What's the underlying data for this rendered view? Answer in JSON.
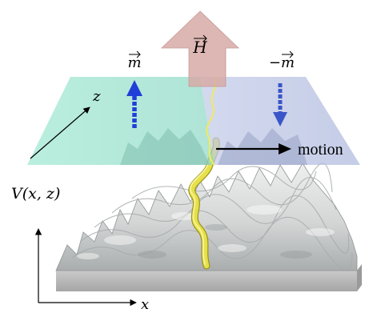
{
  "labels": {
    "field": "H",
    "magnetization_left": "m",
    "magnetization_right": "−m",
    "motion": "motion",
    "axis_z": "z",
    "axis_x": "x",
    "potential": "V(x, z)"
  },
  "colors": {
    "field_arrow": "#d7aaa6",
    "plane_left": "#8fe1c9",
    "plane_right": "#b9c3e2",
    "magnet_arrow_left": "#1f3fd8",
    "magnet_arrow_right": "#3a55c8",
    "domain_wall": "#e6e04a",
    "surface": "#d9dbdb",
    "surface_shadow": "#9fa3a3",
    "base": "#c2c2c2"
  },
  "icons": {
    "field": "field-up-arrow-icon",
    "magnet_left": "up-arrow-icon",
    "magnet_right": "down-arrow-icon",
    "motion": "right-arrow-icon"
  }
}
